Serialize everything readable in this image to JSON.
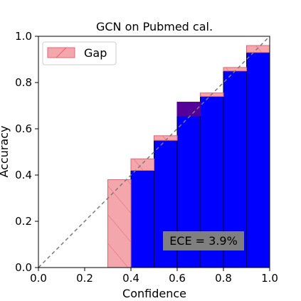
{
  "chart_data": {
    "type": "bar",
    "title": "GCN on Pubmed cal.",
    "xlabel": "Confidence",
    "ylabel": "Accuracy",
    "xlim": [
      0.0,
      1.0
    ],
    "ylim": [
      0.0,
      1.0
    ],
    "xticks": [
      "0.0",
      "0.2",
      "0.4",
      "0.6",
      "0.8",
      "1.0"
    ],
    "yticks": [
      "0.0",
      "0.2",
      "0.4",
      "0.6",
      "0.8",
      "1.0"
    ],
    "grid": false,
    "legend": {
      "position": "top-left",
      "entries": [
        "Gap"
      ]
    },
    "bin_width": 0.1,
    "bins": [
      {
        "x": 0.3,
        "accuracy": 0.0,
        "expected": 0.38
      },
      {
        "x": 0.4,
        "accuracy": 0.42,
        "expected": 0.47
      },
      {
        "x": 0.5,
        "accuracy": 0.55,
        "expected": 0.57
      },
      {
        "x": 0.6,
        "accuracy": 0.715,
        "expected": 0.655
      },
      {
        "x": 0.7,
        "accuracy": 0.74,
        "expected": 0.755
      },
      {
        "x": 0.8,
        "accuracy": 0.85,
        "expected": 0.865
      },
      {
        "x": 0.9,
        "accuracy": 0.93,
        "expected": 0.96
      }
    ],
    "annotation": "ECE = 3.9%",
    "colors": {
      "accuracy_bar": "#0000ff",
      "gap_fill": "#f4a6ad",
      "gap_edge": "#e66470",
      "overlap": "#550099",
      "diagonal": "#7a7a7a",
      "annotation_box": "#7f7f7f"
    }
  }
}
